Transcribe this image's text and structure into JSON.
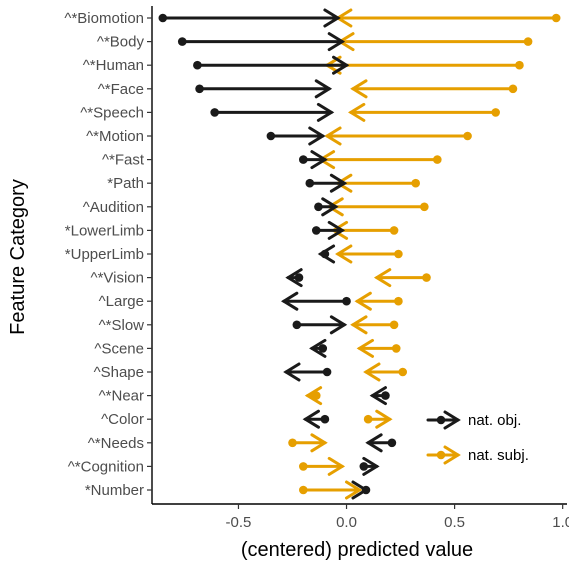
{
  "chart_data": {
    "type": "arrow-dot",
    "xlabel": "(centered) predicted value",
    "ylabel": "Feature Category",
    "xlim": [
      -0.9,
      1.02
    ],
    "xticks": [
      -0.5,
      0.0,
      0.5,
      1.0
    ],
    "xtick_labels": [
      "-0.5",
      "0.0",
      "0.5",
      "1.0"
    ],
    "grid": false,
    "legend_position": "bottom-right",
    "colors": {
      "obj": "#1a1a1a",
      "subj": "#E69F00"
    },
    "series": [
      {
        "key": "obj",
        "name": "nat. obj."
      },
      {
        "key": "subj",
        "name": "nat. subj."
      }
    ],
    "categories": [
      "^*Biomotion",
      "^*Body",
      "^*Human",
      "^*Face",
      "^*Speech",
      "^*Motion",
      "^*Fast",
      "*Path",
      "^Audition",
      "*LowerLimb",
      "*UpperLimb",
      "^*Vision",
      "^Large",
      "^*Slow",
      "^Scene",
      "^Shape",
      "^*Near",
      "^Color",
      "^*Needs",
      "^*Cognition",
      "*Number"
    ],
    "obj": [
      {
        "from": -0.85,
        "to": -0.04
      },
      {
        "from": -0.76,
        "to": -0.02
      },
      {
        "from": -0.69,
        "to": 0.0
      },
      {
        "from": -0.68,
        "to": -0.08
      },
      {
        "from": -0.61,
        "to": -0.07
      },
      {
        "from": -0.35,
        "to": -0.11
      },
      {
        "from": -0.2,
        "to": -0.1
      },
      {
        "from": -0.17,
        "to": -0.01
      },
      {
        "from": -0.13,
        "to": -0.05
      },
      {
        "from": -0.14,
        "to": -0.02
      },
      {
        "from": -0.1,
        "to": -0.12
      },
      {
        "from": -0.22,
        "to": -0.27
      },
      {
        "from": 0.0,
        "to": -0.29
      },
      {
        "from": -0.23,
        "to": -0.01
      },
      {
        "from": -0.11,
        "to": -0.16
      },
      {
        "from": -0.09,
        "to": -0.28
      },
      {
        "from": 0.18,
        "to": 0.12
      },
      {
        "from": -0.1,
        "to": -0.19
      },
      {
        "from": 0.21,
        "to": 0.1
      },
      {
        "from": 0.08,
        "to": 0.14
      },
      {
        "from": 0.09,
        "to": 0.09
      }
    ],
    "subj": [
      {
        "from": 0.97,
        "to": -0.04
      },
      {
        "from": 0.84,
        "to": -0.03
      },
      {
        "from": 0.8,
        "to": -0.09
      },
      {
        "from": 0.77,
        "to": 0.03
      },
      {
        "from": 0.69,
        "to": 0.02
      },
      {
        "from": 0.56,
        "to": -0.09
      },
      {
        "from": 0.42,
        "to": -0.12
      },
      {
        "from": 0.32,
        "to": -0.04
      },
      {
        "from": 0.36,
        "to": -0.08
      },
      {
        "from": 0.22,
        "to": -0.06
      },
      {
        "from": 0.24,
        "to": -0.04
      },
      {
        "from": 0.37,
        "to": 0.14
      },
      {
        "from": 0.24,
        "to": 0.05
      },
      {
        "from": 0.22,
        "to": 0.03
      },
      {
        "from": 0.23,
        "to": 0.06
      },
      {
        "from": 0.26,
        "to": 0.09
      },
      {
        "from": -0.14,
        "to": -0.18
      },
      {
        "from": 0.1,
        "to": 0.2
      },
      {
        "from": -0.25,
        "to": -0.1
      },
      {
        "from": -0.2,
        "to": -0.02
      },
      {
        "from": -0.2,
        "to": 0.06
      }
    ]
  }
}
